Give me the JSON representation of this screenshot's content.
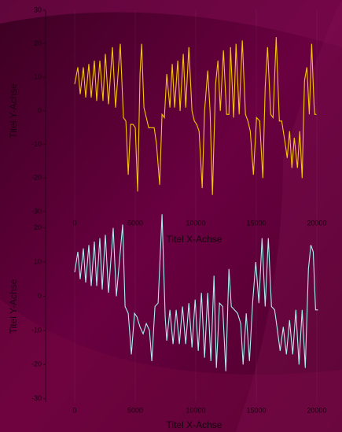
{
  "chart_data": [
    {
      "type": "line",
      "x_label": "Titel X-Achse",
      "y_label": "Titel Y-Achse",
      "color": "#f5c800",
      "xlim": [
        -2400,
        21100
      ],
      "ylim": [
        -30,
        30
      ],
      "xticks": [
        0,
        5000,
        10000,
        15000,
        20000
      ],
      "yticks": [
        30,
        20,
        10,
        0,
        -10,
        -20,
        -30
      ],
      "x": [
        0,
        260,
        455,
        715,
        910,
        1170,
        1365,
        1625,
        1820,
        2080,
        2340,
        2535,
        2795,
        3120,
        3380,
        3770,
        4030,
        4225,
        4420,
        4615,
        4810,
        5005,
        5200,
        5395,
        5525,
        5720,
        5915,
        6110,
        6305,
        6565,
        6760,
        7020,
        7215,
        7410,
        7605,
        7865,
        8060,
        8255,
        8515,
        8710,
        8970,
        9165,
        9425,
        9685,
        9880,
        10075,
        10270,
        10530,
        10725,
        10985,
        11180,
        11375,
        11635,
        11830,
        12025,
        12285,
        12545,
        12740,
        12870,
        13130,
        13325,
        13585,
        13845,
        14105,
        14300,
        14495,
        14755,
        15015,
        15275,
        15535,
        15730,
        15925,
        16185,
        16380,
        16640,
        16900,
        17095,
        17355,
        17550,
        17745,
        17940,
        18135,
        18395,
        18590,
        18785,
        18980,
        19175,
        19370,
        19565,
        19760,
        19825,
        19955
      ],
      "values": [
        8,
        13,
        5,
        13,
        4,
        14,
        4,
        15,
        3,
        15,
        3,
        17,
        2,
        19,
        1,
        20,
        -2,
        -3,
        -19,
        -4,
        -4,
        -5,
        -24,
        11,
        20,
        1,
        -2,
        -5,
        -5,
        -5,
        -10,
        -22,
        -1,
        -2,
        11,
        1,
        14,
        1,
        15,
        0,
        17,
        1,
        19,
        0,
        -3,
        -4,
        -6,
        -23,
        0,
        12,
        0,
        -25,
        8,
        15,
        0,
        18,
        -1,
        -1,
        19,
        -2,
        20,
        -1,
        21,
        -1,
        -3,
        -6,
        -19,
        -2,
        -3,
        -20,
        7,
        19,
        -1,
        -2,
        22,
        -3,
        -3,
        -9,
        -14,
        -6,
        -17,
        -8,
        -17,
        -6,
        -20,
        9,
        13,
        -1,
        20,
        2,
        -1,
        -1
      ]
    },
    {
      "type": "line",
      "x_label": "Titel X-Achse",
      "y_label": "Titel Y-Achse",
      "color": "#a8f0f0",
      "xlim": [
        -2400,
        21100
      ],
      "ylim": [
        -31,
        25
      ],
      "xticks": [
        0,
        5000,
        10000,
        15000,
        20000
      ],
      "yticks": [
        20,
        10,
        0,
        -10,
        -20,
        -30
      ],
      "x": [
        0,
        260,
        455,
        715,
        910,
        1170,
        1365,
        1625,
        1820,
        2080,
        2275,
        2535,
        2795,
        3185,
        3445,
        3965,
        4160,
        4420,
        4680,
        4940,
        5135,
        5395,
        5655,
        5915,
        6175,
        6370,
        6630,
        6890,
        7215,
        7475,
        7605,
        7865,
        8125,
        8385,
        8645,
        8905,
        9165,
        9425,
        9685,
        9945,
        10205,
        10465,
        10725,
        10985,
        11245,
        11505,
        11700,
        11960,
        12220,
        12480,
        12740,
        12935,
        13195,
        13455,
        13715,
        13910,
        14170,
        14430,
        14690,
        14950,
        15210,
        15470,
        15730,
        15990,
        16250,
        16510,
        16705,
        16965,
        17225,
        17485,
        17745,
        18005,
        18265,
        18525,
        18785,
        19045,
        19305,
        19500,
        19695,
        19890,
        20085
      ],
      "values": [
        7,
        13,
        5,
        14,
        4,
        15,
        3,
        16,
        3,
        17,
        2,
        18,
        1,
        20,
        0,
        21,
        -3,
        -5,
        -17,
        -5,
        -6,
        -9,
        -11,
        -8,
        -10,
        -19,
        -3,
        -2,
        24,
        -6,
        -13,
        -4,
        -14,
        -4,
        -14,
        -3,
        -14,
        -2,
        -15,
        -1,
        -16,
        1,
        -18,
        1,
        -19,
        6,
        -21,
        -2,
        -3,
        -22,
        8,
        -3,
        -4,
        -5,
        -8,
        -20,
        -5,
        -19,
        -2,
        10,
        -2,
        17,
        -3,
        17,
        -3,
        -4,
        -9,
        -16,
        -9,
        -17,
        -7,
        -17,
        -4,
        -20,
        -4,
        -21,
        8,
        15,
        13,
        -4,
        -4
      ]
    }
  ]
}
